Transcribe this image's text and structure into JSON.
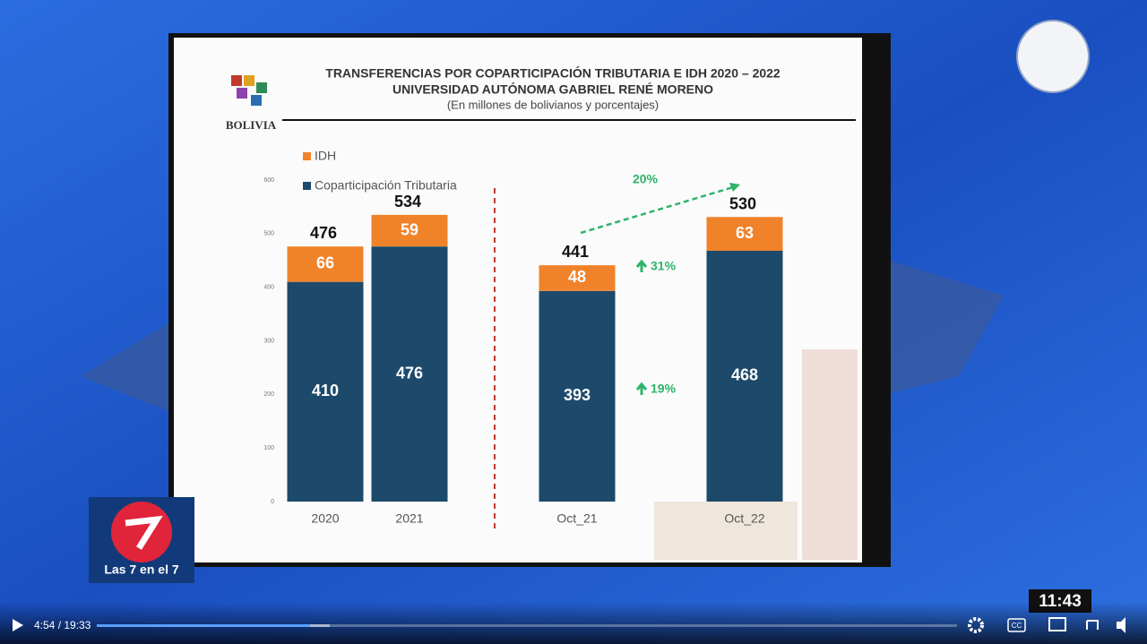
{
  "chart_data": {
    "type": "stacked_bar",
    "title": "TRANSFERENCIAS POR COPARTICIPACIÓN TRIBUTARIA E IDH 2020 – 2022",
    "subtitle": "UNIVERSIDAD AUTÓNOMA GABRIEL RENÉ MORENO",
    "note": "(En millones de bolivianos y porcentajes)",
    "categories": [
      "2020",
      "2021",
      "Oct_21",
      "Oct_22"
    ],
    "series": [
      {
        "name": "Coparticipación Tributaria",
        "color": "#1d4a6b",
        "values": [
          410,
          476,
          393,
          468
        ]
      },
      {
        "name": "IDH",
        "color": "#f0832a",
        "values": [
          66,
          59,
          48,
          63
        ]
      }
    ],
    "totals": [
      476,
      534,
      441,
      530
    ],
    "ylim": [
      0,
      600
    ],
    "yticks": [
      0,
      100,
      200,
      300,
      400,
      500,
      600
    ],
    "annotations": [
      "20%",
      "31%",
      "19%"
    ]
  },
  "logo": {
    "country": "BOLIVIA"
  },
  "channel": {
    "name": "Las 7 en el 7"
  },
  "clock": "11:43",
  "player": {
    "time": "4:54 / 19:33",
    "captions": "CC"
  }
}
